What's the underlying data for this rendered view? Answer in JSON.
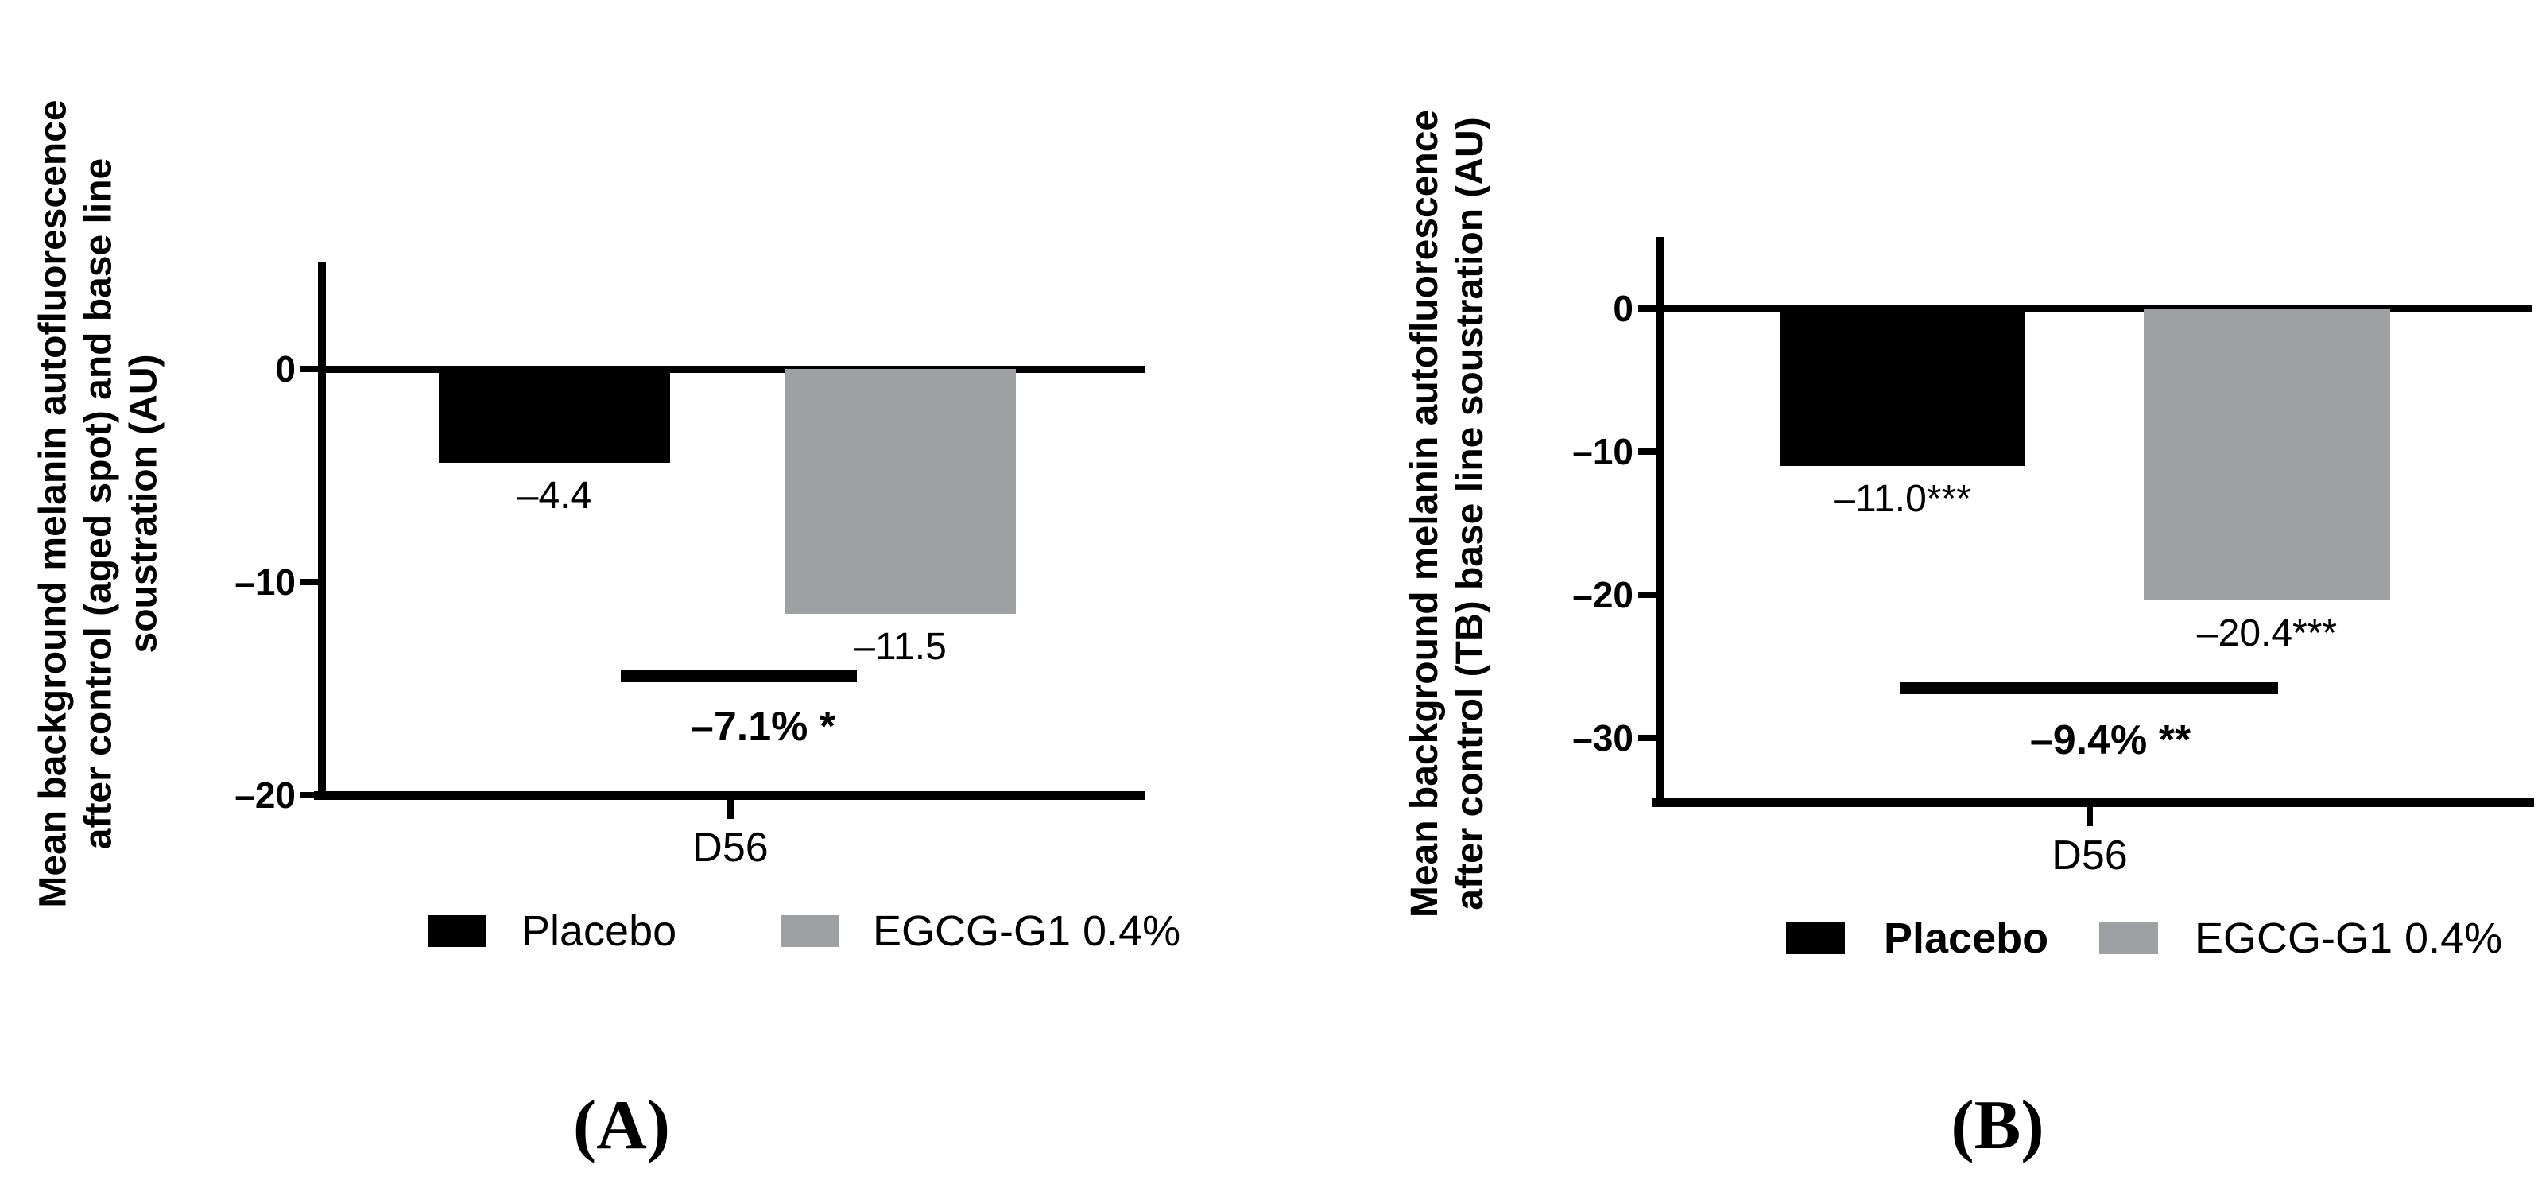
{
  "chart_data": [
    {
      "type": "bar",
      "panel_caption": "(A)",
      "y_axis_title_lines": [
        "Mean background melanin autofluorescence",
        "after control (aged spot) and base line",
        "soustration (AU)"
      ],
      "ylabel": "Mean background melanin autofluorescence after control (aged spot) and base line soustration (AU)",
      "xlabel": "",
      "categories": [
        "D56"
      ],
      "series": [
        {
          "name": "Placebo",
          "color": "#000000",
          "values": [
            -4.4
          ],
          "value_labels": [
            "–4.4"
          ]
        },
        {
          "name": "EGCG-G1 0.4%",
          "color": "#9fa0a4",
          "values": [
            -11.5
          ],
          "value_labels": [
            "–11.5"
          ]
        }
      ],
      "y_ticks": [
        {
          "value": 0,
          "label": "0"
        },
        {
          "value": -10,
          "label": "–10"
        },
        {
          "value": -20,
          "label": "–20"
        }
      ],
      "ylim": [
        -20,
        5
      ],
      "grid": false,
      "legend_position": "bottom",
      "legend": [
        {
          "label": "Placebo",
          "color": "#000000",
          "bold": false
        },
        {
          "label": "EGCG-G1 0.4%",
          "color": "#9fa0a4",
          "bold": false
        }
      ],
      "comparison": {
        "label": "–7.1% *",
        "bar_value": -14.2,
        "spans": [
          "Placebo",
          "EGCG-G1 0.4%"
        ]
      }
    },
    {
      "type": "bar",
      "panel_caption": "(B)",
      "y_axis_title_lines": [
        "Mean background melanin autofluorescence",
        "after control (TB) base line soustration (AU)"
      ],
      "ylabel": "Mean background melanin autofluorescence after control (TB) base line soustration (AU)",
      "xlabel": "",
      "categories": [
        "D56"
      ],
      "series": [
        {
          "name": "Placebo",
          "color": "#000000",
          "values": [
            -11.0
          ],
          "value_labels": [
            "–11.0***"
          ]
        },
        {
          "name": "EGCG-G1 0.4%",
          "color": "#9fa0a4",
          "values": [
            -20.4
          ],
          "value_labels": [
            "–20.4***"
          ]
        }
      ],
      "y_ticks": [
        {
          "value": 0,
          "label": "0"
        },
        {
          "value": -10,
          "label": "–10"
        },
        {
          "value": -20,
          "label": "–20"
        },
        {
          "value": -30,
          "label": "–30"
        }
      ],
      "ylim": [
        -34.5,
        5
      ],
      "grid": false,
      "legend_position": "bottom",
      "legend": [
        {
          "label": "Placebo",
          "color": "#000000",
          "bold": true
        },
        {
          "label": "EGCG-G1 0.4%",
          "color": "#9fa0a4",
          "bold": false
        }
      ],
      "comparison": {
        "label": "–9.4% **",
        "bar_value": -26.1,
        "spans": [
          "Placebo",
          "EGCG-G1 0.4%"
        ]
      }
    }
  ]
}
